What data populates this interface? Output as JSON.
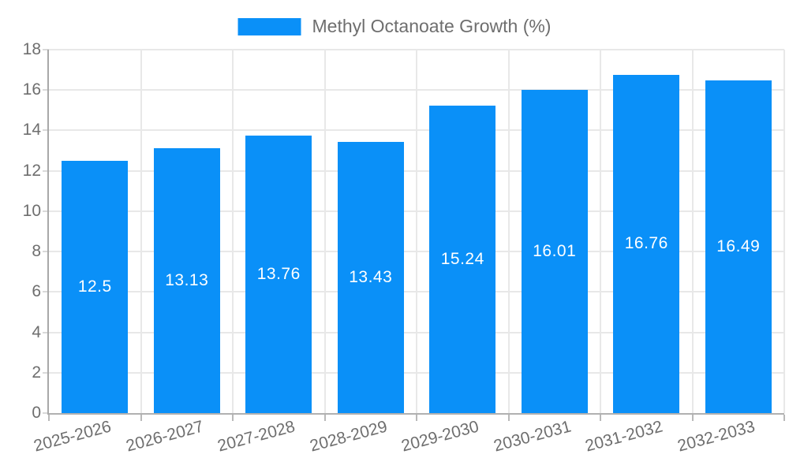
{
  "chart_data": {
    "type": "bar",
    "title": "",
    "legend": "Methyl Octanoate Growth (%)",
    "legend_position": "top-center",
    "categories": [
      "2025-2026",
      "2026-2027",
      "2027-2028",
      "2028-2029",
      "2029-2030",
      "2030-2031",
      "2031-2032",
      "2032-2033"
    ],
    "values": [
      12.5,
      13.13,
      13.76,
      13.43,
      15.24,
      16.01,
      16.76,
      16.49
    ],
    "value_labels": [
      "12.5",
      "13.13",
      "13.76",
      "13.43",
      "15.24",
      "16.01",
      "16.76",
      "16.49"
    ],
    "xlabel": "",
    "ylabel": "",
    "ylim": [
      0,
      18
    ],
    "yticks": [
      0,
      2,
      4,
      6,
      8,
      10,
      12,
      14,
      16,
      18
    ],
    "grid": true,
    "x_tick_label_rotation_deg": -15,
    "bar_color": "#0a90f8",
    "value_label_color": "#ffffff",
    "axis_text_color": "#6e6e6e",
    "grid_color": "#e8e8e8",
    "axis_line_color": "#b0b0b0"
  }
}
